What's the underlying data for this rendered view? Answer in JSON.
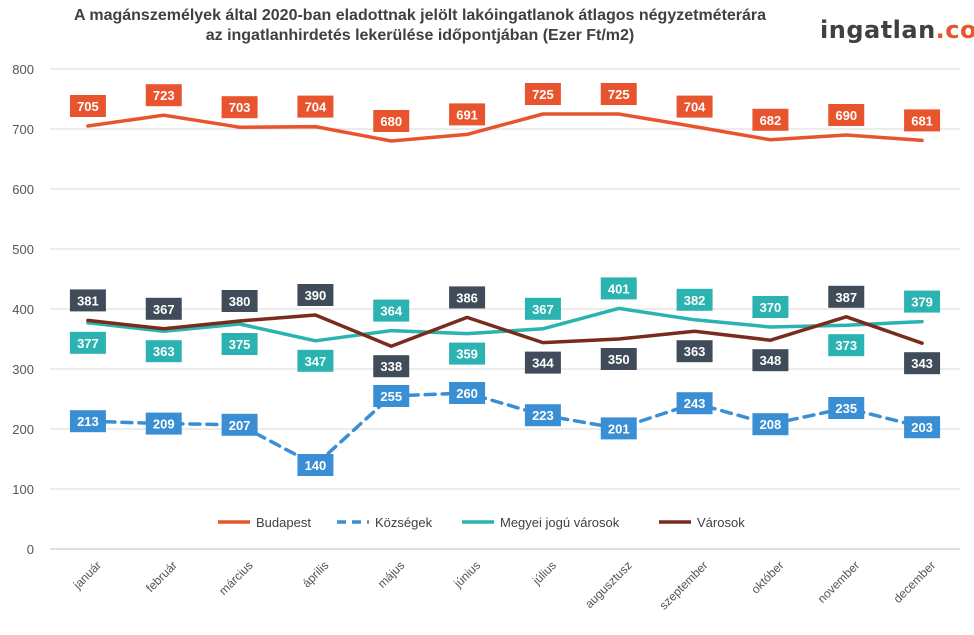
{
  "title": {
    "line1": "A magánszemélyek által 2020-ban eladottnak jelölt lakóingatlanok átlagos négyzetméterára",
    "line2": "az ingatlanhirdetés lekerülése időpontjában (Ezer Ft/m2)"
  },
  "logo": {
    "part1": "ingatlan",
    "part2": ".com"
  },
  "colors": {
    "Budapest": "#e8542e",
    "Községek": "#3a8fd4",
    "Megyei jogú városok": "#2ab3b0",
    "Városok": "#7a2c1c",
    "label_dark": "#404c5a"
  },
  "chart_data": {
    "type": "line",
    "title": "A magánszemélyek által 2020-ban eladottnak jelölt lakóingatlanok átlagos négyzetméterára az ingatlanhirdetés lekerülése időpontjában (Ezer Ft/m2)",
    "categories": [
      "január",
      "február",
      "március",
      "április",
      "május",
      "június",
      "július",
      "augusztusz",
      "szeptember",
      "október",
      "november",
      "december"
    ],
    "ylim": [
      0,
      800
    ],
    "yticks": [
      0,
      100,
      200,
      300,
      400,
      500,
      600,
      700,
      800
    ],
    "grid": true,
    "legend": "bottom",
    "series": [
      {
        "name": "Budapest",
        "values": [
          705,
          723,
          703,
          704,
          680,
          691,
          725,
          725,
          704,
          682,
          690,
          681
        ]
      },
      {
        "name": "Községek",
        "values": [
          213,
          209,
          207,
          140,
          255,
          260,
          223,
          201,
          243,
          208,
          235,
          203
        ]
      },
      {
        "name": "Megyei jogú városok",
        "values": [
          377,
          363,
          375,
          347,
          364,
          359,
          367,
          401,
          382,
          370,
          373,
          379
        ]
      },
      {
        "name": "Városok",
        "values": [
          381,
          367,
          380,
          390,
          338,
          386,
          344,
          350,
          363,
          348,
          387,
          343
        ]
      }
    ]
  }
}
